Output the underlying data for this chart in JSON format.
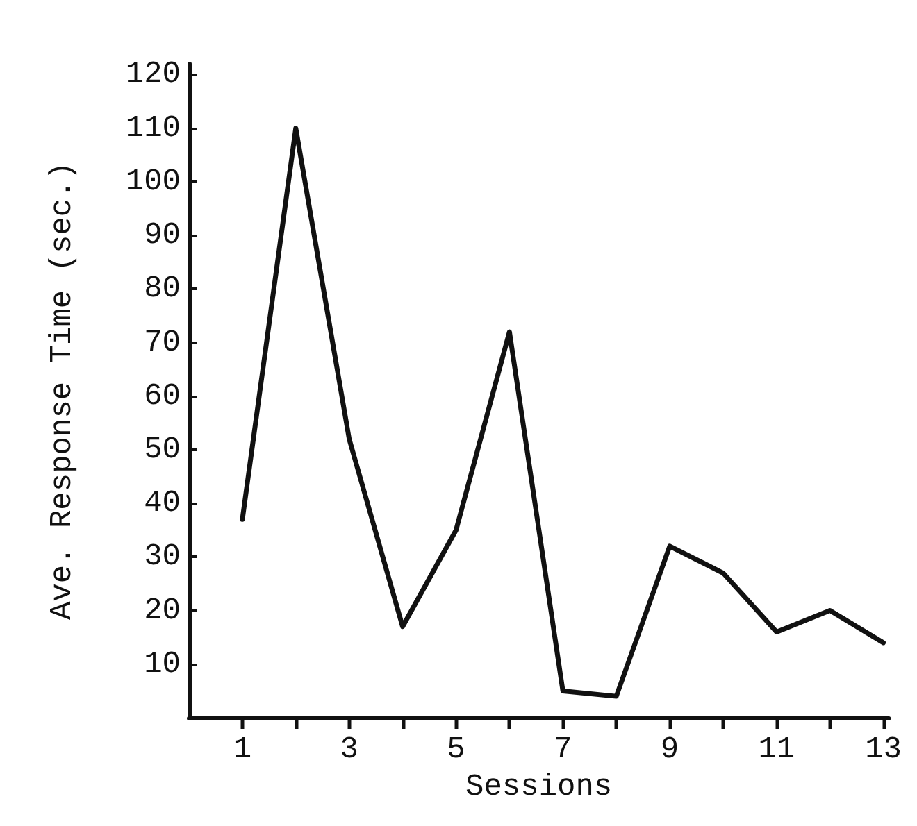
{
  "chart_data": {
    "type": "line",
    "xlabel": "Sessions",
    "ylabel": "Ave. Response Time (sec.)",
    "x": [
      1,
      2,
      3,
      4,
      5,
      6,
      7,
      8,
      9,
      10,
      11,
      12,
      13
    ],
    "values": [
      37,
      110,
      52,
      17,
      35,
      72,
      5,
      4,
      32,
      27,
      16,
      20,
      14
    ],
    "color": "#111111",
    "xlim": [
      0,
      13.1
    ],
    "xticks": [
      1,
      {
        "value": 2,
        "label": null
      },
      3,
      {
        "value": 4,
        "label": null
      },
      5,
      {
        "value": 6,
        "label": null
      },
      7,
      {
        "value": 8,
        "label": null
      },
      9,
      {
        "value": 10,
        "label": null
      },
      11,
      {
        "value": 12,
        "label": null
      },
      13
    ],
    "ylim": [
      0,
      122
    ],
    "yticks": [
      10,
      20,
      30,
      40,
      50,
      60,
      70,
      80,
      90,
      100,
      110,
      120
    ],
    "grid": false,
    "marker": "none",
    "line_style": "solid"
  }
}
